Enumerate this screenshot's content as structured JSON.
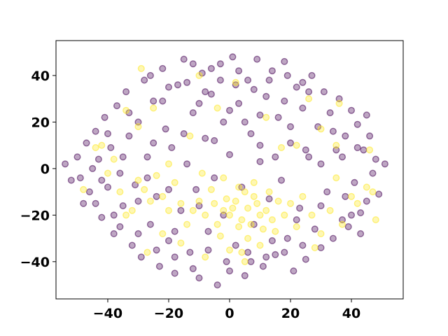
{
  "chart_data": {
    "type": "scatter",
    "title": "",
    "xlabel": "",
    "ylabel": "",
    "xlim": [
      -57,
      57
    ],
    "ylim": [
      -56,
      55
    ],
    "xticks": [
      -40,
      -20,
      0,
      20,
      40
    ],
    "yticks": [
      -40,
      -20,
      0,
      20,
      40
    ],
    "xtick_labels": [
      "−40",
      "−20",
      "0",
      "20",
      "40"
    ],
    "ytick_labels": [
      "−40",
      "−20",
      "0",
      "20",
      "40"
    ],
    "grid": false,
    "legend": "none",
    "marker": "circle",
    "alpha": 0.35,
    "colors": {
      "class_0": "#440154",
      "class_1": "#fde725"
    },
    "series": [
      {
        "class": "class_0",
        "points": [
          [
            -54.0,
            2.0
          ],
          [
            -50.0,
            5.0
          ],
          [
            -49.0,
            -4.0
          ],
          [
            -48.0,
            -15.0
          ],
          [
            -47.0,
            11.0
          ],
          [
            -46.0,
            -10.0
          ],
          [
            -44.0,
            16.0
          ],
          [
            -43.0,
            4.0
          ],
          [
            -42.0,
            -21.0
          ],
          [
            -41.0,
            22.0
          ],
          [
            -40.0,
            -8.0
          ],
          [
            -39.0,
            9.0
          ],
          [
            -38.0,
            -28.0
          ],
          [
            -37.0,
            27.0
          ],
          [
            -36.0,
            -2.0
          ],
          [
            -35.0,
            -16.0
          ],
          [
            -34.0,
            33.0
          ],
          [
            -33.0,
            14.0
          ],
          [
            -32.0,
            -33.0
          ],
          [
            -31.0,
            -7.0
          ],
          [
            -30.0,
            20.0
          ],
          [
            -29.0,
            -38.0
          ],
          [
            -28.0,
            38.0
          ],
          [
            -27.0,
            5.0
          ],
          [
            -26.0,
            -24.0
          ],
          [
            -25.0,
            29.0
          ],
          [
            -24.0,
            -12.0
          ],
          [
            -23.0,
            -42.0
          ],
          [
            -22.0,
            43.0
          ],
          [
            -21.0,
            17.0
          ],
          [
            -20.0,
            -31.0
          ],
          [
            -19.0,
            9.0
          ],
          [
            -18.0,
            -45.0
          ],
          [
            -17.0,
            36.0
          ],
          [
            -16.0,
            -18.0
          ],
          [
            -15.0,
            47.0
          ],
          [
            -14.0,
            2.0
          ],
          [
            -13.0,
            -36.0
          ],
          [
            -12.0,
            24.0
          ],
          [
            -11.0,
            -9.0
          ],
          [
            -10.0,
            -47.0
          ],
          [
            -9.0,
            41.0
          ],
          [
            -8.0,
            13.0
          ],
          [
            -7.0,
            -27.0
          ],
          [
            -6.0,
            32.0
          ],
          [
            -5.0,
            -4.0
          ],
          [
            -4.0,
            -50.0
          ],
          [
            -3.0,
            45.0
          ],
          [
            -2.0,
            20.0
          ],
          [
            -1.0,
            -40.0
          ],
          [
            0.0,
            6.0
          ],
          [
            1.0,
            48.0
          ],
          [
            2.0,
            -33.0
          ],
          [
            3.0,
            28.0
          ],
          [
            4.0,
            -8.0
          ],
          [
            5.0,
            -46.0
          ],
          [
            6.0,
            38.0
          ],
          [
            7.0,
            15.0
          ],
          [
            8.0,
            -24.0
          ],
          [
            9.0,
            47.0
          ],
          [
            10.0,
            3.0
          ],
          [
            11.0,
            -42.0
          ],
          [
            12.0,
            31.0
          ],
          [
            13.0,
            -13.0
          ],
          [
            14.0,
            42.0
          ],
          [
            15.0,
            -37.0
          ],
          [
            16.0,
            22.0
          ],
          [
            17.0,
            -5.0
          ],
          [
            18.0,
            46.0
          ],
          [
            19.0,
            -30.0
          ],
          [
            20.0,
            11.0
          ],
          [
            21.0,
            -44.0
          ],
          [
            22.0,
            35.0
          ],
          [
            23.0,
            -17.0
          ],
          [
            24.0,
            26.0
          ],
          [
            25.0,
            -39.0
          ],
          [
            26.0,
            5.0
          ],
          [
            27.0,
            40.0
          ],
          [
            28.0,
            -26.0
          ],
          [
            29.0,
            18.0
          ],
          [
            30.0,
            -34.0
          ],
          [
            31.0,
            33.0
          ],
          [
            32.0,
            -10.0
          ],
          [
            33.0,
            24.0
          ],
          [
            34.0,
            -30.0
          ],
          [
            35.0,
            8.0
          ],
          [
            36.0,
            30.0
          ],
          [
            37.0,
            -22.0
          ],
          [
            38.0,
            14.0
          ],
          [
            39.0,
            -25.0
          ],
          [
            40.0,
            25.0
          ],
          [
            41.0,
            -6.0
          ],
          [
            42.0,
            19.0
          ],
          [
            43.0,
            -19.0
          ],
          [
            44.0,
            8.0
          ],
          [
            45.0,
            -14.0
          ],
          [
            46.0,
            14.0
          ],
          [
            47.0,
            -2.0
          ],
          [
            48.0,
            4.0
          ],
          [
            49.0,
            -11.0
          ],
          [
            51.0,
            2.0
          ],
          [
            -52.0,
            -5.0
          ],
          [
            -45.0,
            0.0
          ],
          [
            -38.0,
            -20.0
          ],
          [
            -33.0,
            24.0
          ],
          [
            -27.0,
            -4.0
          ],
          [
            -22.0,
            29.0
          ],
          [
            -18.0,
            -27.0
          ],
          [
            -14.0,
            37.0
          ],
          [
            -10.0,
            -16.0
          ],
          [
            -6.0,
            43.0
          ],
          [
            -2.0,
            -20.0
          ],
          [
            2.0,
            36.0
          ],
          [
            6.0,
            -36.0
          ],
          [
            10.0,
            23.0
          ],
          [
            14.0,
            -31.0
          ],
          [
            18.0,
            29.0
          ],
          [
            22.0,
            -22.0
          ],
          [
            26.0,
            33.0
          ],
          [
            30.0,
            -16.0
          ],
          [
            34.0,
            16.0
          ],
          [
            38.0,
            -12.0
          ],
          [
            42.0,
            9.0
          ],
          [
            -35.0,
            5.0
          ],
          [
            -30.0,
            -14.0
          ],
          [
            -25.0,
            11.0
          ],
          [
            -20.0,
            -9.0
          ],
          [
            -15.0,
            15.0
          ],
          [
            -10.0,
            28.0
          ],
          [
            -5.0,
            12.0
          ],
          [
            0.0,
            25.0
          ],
          [
            5.0,
            20.0
          ],
          [
            10.0,
            10.0
          ],
          [
            15.0,
            5.0
          ],
          [
            20.0,
            18.0
          ],
          [
            25.0,
            8.0
          ],
          [
            30.0,
            2.0
          ],
          [
            -26.0,
            40.0
          ],
          [
            -20.0,
            35.0
          ],
          [
            -12.0,
            45.0
          ],
          [
            -8.0,
            33.0
          ],
          [
            -3.0,
            38.0
          ],
          [
            3.0,
            42.0
          ],
          [
            8.0,
            34.0
          ],
          [
            13.0,
            38.0
          ],
          [
            19.0,
            40.0
          ],
          [
            24.0,
            37.0
          ],
          [
            -30.0,
            -28.0
          ],
          [
            -24.0,
            -35.0
          ],
          [
            -18.0,
            -38.0
          ],
          [
            -12.0,
            -43.0
          ],
          [
            -7.0,
            -35.0
          ],
          [
            0.0,
            -44.0
          ],
          [
            7.0,
            -40.0
          ],
          [
            12.0,
            -38.0
          ],
          [
            18.0,
            -36.0
          ],
          [
            24.0,
            -33.0
          ],
          [
            -40.0,
            15.0
          ],
          [
            -42.0,
            -5.0
          ],
          [
            -44.0,
            -15.0
          ],
          [
            -36.0,
            -25.0
          ],
          [
            43.0,
            -28.0
          ],
          [
            45.0,
            23.0
          ],
          [
            40.0,
            -20.0
          ],
          [
            37.0,
            5.0
          ]
        ]
      },
      {
        "class": "class_1",
        "points": [
          [
            -5.0,
            -15.0
          ],
          [
            -2.0,
            -18.0
          ],
          [
            0.0,
            -20.0
          ],
          [
            2.0,
            -14.0
          ],
          [
            4.0,
            -22.0
          ],
          [
            6.0,
            -17.0
          ],
          [
            8.0,
            -12.0
          ],
          [
            10.0,
            -20.0
          ],
          [
            3.0,
            -25.0
          ],
          [
            5.0,
            -10.0
          ],
          [
            -1.0,
            -13.0
          ],
          [
            7.0,
            -24.0
          ],
          [
            9.0,
            -15.0
          ],
          [
            12.0,
            -18.0
          ],
          [
            14.0,
            -22.0
          ],
          [
            16.0,
            -14.0
          ],
          [
            -8.0,
            -20.0
          ],
          [
            -4.0,
            -24.0
          ],
          [
            11.0,
            -26.0
          ],
          [
            1.0,
            -17.0
          ],
          [
            -10.0,
            -14.0
          ],
          [
            -6.0,
            -9.0
          ],
          [
            13.0,
            -10.0
          ],
          [
            15.0,
            -27.0
          ],
          [
            -3.0,
            -29.0
          ],
          [
            6.0,
            -30.0
          ],
          [
            18.0,
            -20.0
          ],
          [
            -12.0,
            -18.0
          ],
          [
            3.0,
            -8.0
          ],
          [
            8.0,
            -6.0
          ],
          [
            -28.0,
            -9.0
          ],
          [
            -26.0,
            -14.0
          ],
          [
            -30.0,
            -5.0
          ],
          [
            -32.0,
            -18.0
          ],
          [
            -22.0,
            -12.0
          ],
          [
            -24.0,
            -3.0
          ],
          [
            -36.0,
            -10.0
          ],
          [
            -34.0,
            -20.0
          ],
          [
            -20.0,
            -18.0
          ],
          [
            -18.0,
            -6.0
          ],
          [
            -16.0,
            -15.0
          ],
          [
            -14.0,
            -24.0
          ],
          [
            20.0,
            -15.0
          ],
          [
            22.0,
            -25.0
          ],
          [
            24.0,
            -12.0
          ],
          [
            27.0,
            -20.0
          ],
          [
            30.0,
            -28.0
          ],
          [
            33.0,
            -18.0
          ],
          [
            37.0,
            -24.0
          ],
          [
            40.0,
            -12.0
          ],
          [
            45.0,
            -8.0
          ],
          [
            47.0,
            -10.0
          ],
          [
            48.0,
            -22.0
          ],
          [
            46.0,
            8.0
          ],
          [
            42.0,
            -15.0
          ],
          [
            35.0,
            10.0
          ],
          [
            -38.0,
            4.0
          ],
          [
            -40.0,
            -2.0
          ],
          [
            -42.0,
            10.0
          ],
          [
            -29.0,
            43.0
          ],
          [
            -25.0,
            26.0
          ],
          [
            -30.0,
            18.0
          ],
          [
            -34.0,
            25.0
          ],
          [
            -10.0,
            40.0
          ],
          [
            -4.0,
            26.0
          ],
          [
            2.0,
            37.0
          ],
          [
            26.0,
            30.0
          ],
          [
            36.0,
            28.0
          ],
          [
            30.0,
            17.0
          ],
          [
            22.0,
            10.0
          ],
          [
            -20.0,
            2.0
          ],
          [
            -44.0,
            9.0
          ],
          [
            -48.0,
            -9.0
          ],
          [
            0.0,
            -35.0
          ],
          [
            -8.0,
            -38.0
          ],
          [
            10.0,
            -33.0
          ],
          [
            -27.0,
            -36.0
          ],
          [
            -22.0,
            -28.0
          ],
          [
            28.0,
            -34.0
          ],
          [
            35.0,
            -4.0
          ],
          [
            17.0,
            9.0
          ],
          [
            -13.0,
            14.0
          ],
          [
            -9.0,
            -2.0
          ],
          [
            -2.0,
            -4.0
          ],
          [
            4.0,
            -36.0
          ],
          [
            -16.0,
            -32.0
          ],
          [
            12.0,
            22.0
          ],
          [
            5.0,
            -40.0
          ]
        ]
      }
    ]
  }
}
